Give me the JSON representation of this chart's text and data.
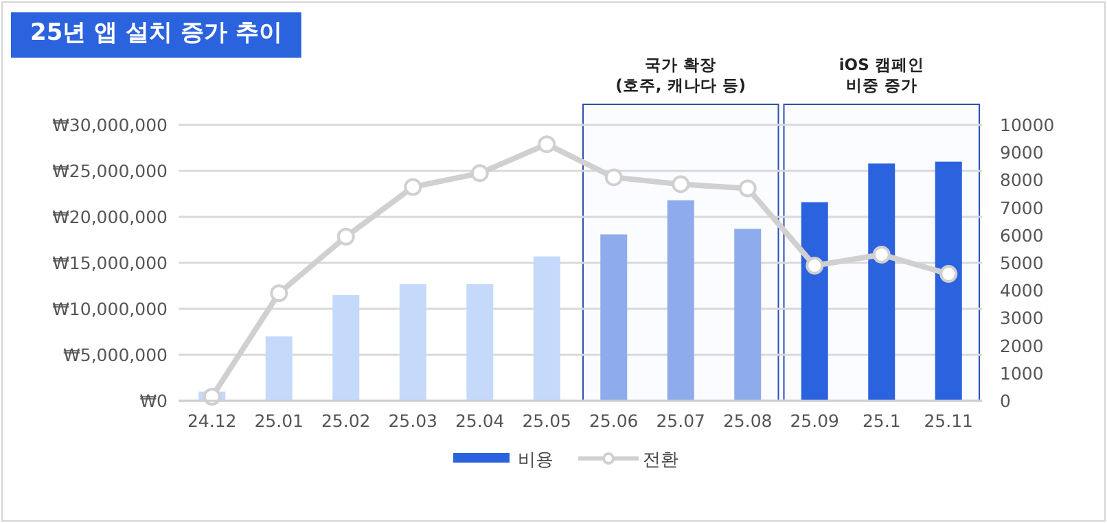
{
  "chart_data": {
    "type": "bar",
    "title": "25년 앱 설치 증가 추이",
    "categories": [
      "24.12",
      "25.01",
      "25.02",
      "25.03",
      "25.04",
      "25.05",
      "25.06",
      "25.07",
      "25.08",
      "25.09",
      "25.1",
      "25.11"
    ],
    "series": [
      {
        "name": "비용",
        "color": "#2b62de",
        "colors": [
          "#c5d9fb",
          "#c5d9fb",
          "#c5d9fb",
          "#c5d9fb",
          "#c5d9fb",
          "#c5d9fb",
          "#8eaceb",
          "#8eaceb",
          "#8eaceb",
          "#2b62de",
          "#2b62de",
          "#2b62de"
        ],
        "values": [
          1000000,
          7000000,
          11500000,
          12700000,
          12700000,
          15700000,
          18100000,
          21800000,
          18700000,
          21600000,
          25800000,
          26000000
        ]
      },
      {
        "name": "전환",
        "type": "line",
        "axis": "y2",
        "color": "#d0d0d0",
        "values": [
          150,
          3900,
          5950,
          7750,
          8250,
          9300,
          8100,
          7850,
          7700,
          4900,
          5300,
          4600
        ]
      }
    ],
    "ylim": [
      0,
      30000000
    ],
    "yticks": [
      {
        "value": 0,
        "label": "₩0"
      },
      {
        "value": 5000000,
        "label": "₩5,000,000"
      },
      {
        "value": 10000000,
        "label": "₩10,000,000"
      },
      {
        "value": 15000000,
        "label": "₩15,000,000"
      },
      {
        "value": 20000000,
        "label": "₩20,000,000"
      },
      {
        "value": 25000000,
        "label": "₩25,000,000"
      },
      {
        "value": 30000000,
        "label": "₩30,000,000"
      }
    ],
    "y2lim": [
      0,
      10000
    ],
    "y2ticks": [
      0,
      1000,
      2000,
      3000,
      4000,
      5000,
      6000,
      7000,
      8000,
      9000,
      10000
    ],
    "bands": [
      {
        "axis": "x",
        "from": "25.06",
        "to": "25.08",
        "label": "국가 확장\n(호주, 캐나다 등)",
        "color": "#2a4fb0"
      },
      {
        "axis": "x",
        "from": "25.09",
        "to": "25.11",
        "label": "iOS 캠페인\n비중 증가",
        "color": "#2a4fb0"
      }
    ],
    "grid": "y",
    "legend": "bottom",
    "marker": "circle"
  }
}
